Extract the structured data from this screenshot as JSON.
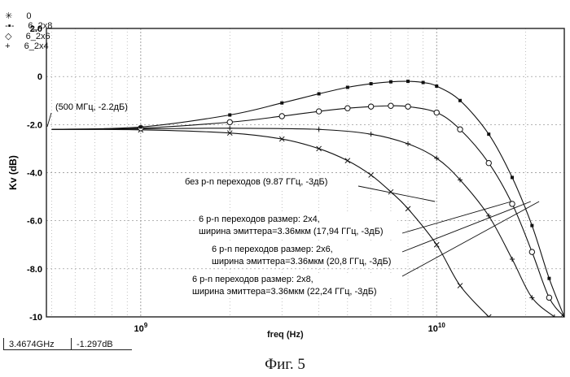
{
  "legend": {
    "items": [
      {
        "symbol": "✳",
        "label": "0"
      },
      {
        "symbol": "-▪-",
        "label": "6_2x8"
      },
      {
        "symbol": "◇",
        "label": "6_2x6"
      },
      {
        "symbol": "+",
        "label": "6_2x4"
      }
    ]
  },
  "readout": {
    "freq": "3.4674GHz",
    "value": "-1.297dB"
  },
  "caption": "Фиг. 5",
  "chart_data": {
    "type": "line",
    "xlabel": "freq (Hz)",
    "ylabel": "Kv (dB)",
    "xscale": "log",
    "xlim": [
      480000000.0,
      27000000000.0
    ],
    "ylim": [
      -10,
      2
    ],
    "yticks": [
      2.0,
      0,
      -2.0,
      -4.0,
      -6.0,
      -8.0,
      -10
    ],
    "ytick_labels": [
      "2.0",
      "0",
      "-2.0",
      "-4.0",
      "-6.0",
      "-8.0",
      "-10"
    ],
    "xticks": [
      1000000000.0,
      10000000000.0
    ],
    "xtick_labels": [
      "10^9",
      "10^10"
    ],
    "grid": true,
    "series": [
      {
        "name": "0",
        "marker": "x",
        "x": [
          500000000.0,
          1000000000.0,
          2000000000.0,
          3000000000.0,
          4000000000.0,
          5000000000.0,
          6000000000.0,
          7000000000.0,
          8000000000.0,
          10000000000.0,
          12000000000.0,
          15000000000.0
        ],
        "y": [
          -2.2,
          -2.22,
          -2.35,
          -2.6,
          -3.0,
          -3.5,
          -4.1,
          -4.8,
          -5.5,
          -7.0,
          -8.7,
          -10.0
        ]
      },
      {
        "name": "6_2x4",
        "marker": "+",
        "x": [
          500000000.0,
          1000000000.0,
          2000000000.0,
          4000000000.0,
          6000000000.0,
          8000000000.0,
          10000000000.0,
          12000000000.0,
          15000000000.0,
          18000000000.0,
          21000000000.0,
          25000000000.0
        ],
        "y": [
          -2.2,
          -2.18,
          -2.15,
          -2.2,
          -2.4,
          -2.8,
          -3.4,
          -4.3,
          -5.8,
          -7.6,
          -9.2,
          -10.0
        ]
      },
      {
        "name": "6_2x6",
        "marker": "diamond",
        "x": [
          500000000.0,
          1000000000.0,
          2000000000.0,
          3000000000.0,
          4000000000.0,
          5000000000.0,
          6000000000.0,
          7000000000.0,
          8000000000.0,
          10000000000.0,
          12000000000.0,
          15000000000.0,
          18000000000.0,
          21000000000.0,
          24000000000.0,
          27000000000.0
        ],
        "y": [
          -2.2,
          -2.15,
          -1.9,
          -1.65,
          -1.45,
          -1.32,
          -1.25,
          -1.22,
          -1.25,
          -1.5,
          -2.2,
          -3.6,
          -5.3,
          -7.3,
          -9.2,
          -10.0
        ]
      },
      {
        "name": "6_2x8",
        "marker": "square",
        "x": [
          500000000.0,
          1000000000.0,
          2000000000.0,
          3000000000.0,
          4000000000.0,
          5000000000.0,
          6000000000.0,
          7000000000.0,
          8000000000.0,
          9000000000.0,
          10000000000.0,
          12000000000.0,
          15000000000.0,
          18000000000.0,
          21000000000.0,
          24000000000.0,
          27000000000.0
        ],
        "y": [
          -2.2,
          -2.1,
          -1.6,
          -1.1,
          -0.72,
          -0.45,
          -0.3,
          -0.22,
          -0.2,
          -0.25,
          -0.4,
          -1.0,
          -2.4,
          -4.2,
          -6.2,
          -8.4,
          -10.0
        ]
      }
    ],
    "annotations": [
      {
        "text": "(500 МГц, -2.2дБ)"
      },
      {
        "text": "без p-n переходов (9.87 ГГц, -3дБ)",
        "x": 9870000000.0,
        "y": -5.2
      },
      {
        "text": "6 p-n переходов размер: 2x4,",
        "text2": "ширина эмиттера=3.36мкм (17,94 ГГц, -3дБ)",
        "x": 17900000000.0,
        "y": -5.2
      },
      {
        "text": "6 p-n переходов размер: 2x6,",
        "text2": "ширина эмиттера=3.36мкм (20,8 ГГц, -3дБ)",
        "x": 20800000000.0,
        "y": -5.2
      },
      {
        "text": "6 p-n переходов размер: 2x8,",
        "text2": "ширина эмиттера=3.36мкм (22,24 ГГц, -3дБ)",
        "x": 22200000000.0,
        "y": -5.2
      }
    ]
  }
}
